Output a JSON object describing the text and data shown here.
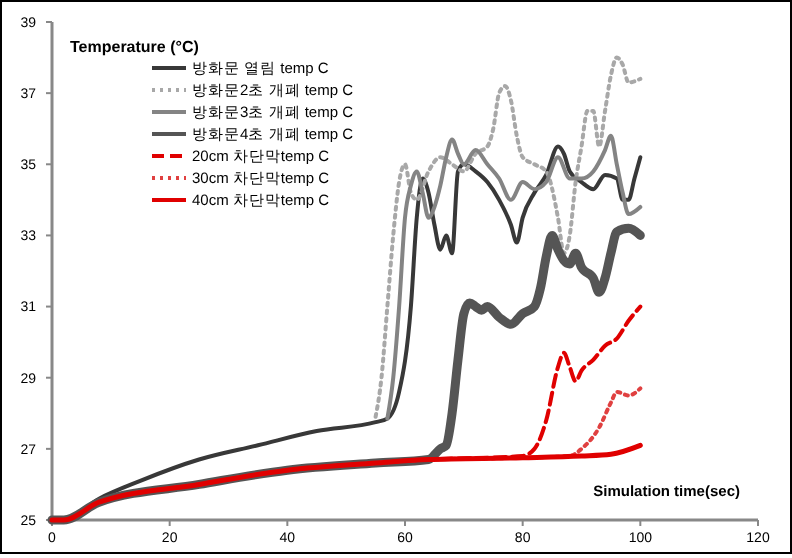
{
  "chart_data": {
    "type": "line",
    "ylabel": "Temperature (°C)",
    "xlabel": "Simulation time(sec)",
    "xlim": [
      0,
      120
    ],
    "xticks": [
      0,
      20,
      40,
      60,
      80,
      100,
      120
    ],
    "ylim": [
      25,
      39
    ],
    "yticks": [
      25,
      27,
      29,
      31,
      33,
      35,
      37,
      39
    ],
    "legend": "top left",
    "grid": false,
    "series": [
      {
        "name": "방화문 열림 temp C",
        "color": "#383838",
        "line_style": "solid",
        "x": [
          0,
          2,
          8,
          15,
          25,
          35,
          45,
          55,
          57,
          59,
          61,
          62,
          63,
          64,
          65,
          66,
          67,
          68,
          69,
          70,
          72,
          74,
          76,
          78,
          79,
          80,
          82,
          84,
          86,
          87,
          88,
          90,
          92,
          94,
          96,
          97,
          98,
          99,
          100
        ],
        "values": [
          25,
          25,
          25.6,
          26.1,
          26.7,
          27.1,
          27.5,
          27.75,
          27.85,
          28.6,
          31,
          33.5,
          34.6,
          34.2,
          33.3,
          32.6,
          33,
          32.5,
          34.8,
          35,
          34.8,
          34.5,
          34,
          33.3,
          32.8,
          33.5,
          34.2,
          34.7,
          35.5,
          35.3,
          34.8,
          34.5,
          34.3,
          34.7,
          34.6,
          34,
          34,
          34.6,
          35.2
        ]
      },
      {
        "name": "방화문2초 개폐 temp C",
        "color": "#a8a8a8",
        "line_style": "dotted",
        "x": [
          55,
          56,
          57,
          58,
          59,
          60,
          61,
          62,
          64,
          66,
          68,
          70,
          72,
          74,
          75,
          76,
          77,
          78,
          79,
          80,
          82,
          84,
          86,
          87,
          88,
          89,
          90,
          91,
          92,
          93,
          94,
          95,
          96,
          97,
          98,
          100
        ],
        "values": [
          27.9,
          29,
          31,
          33,
          34.5,
          35,
          34.2,
          34,
          34.8,
          35.2,
          35,
          34.8,
          35.3,
          35.5,
          36,
          37,
          37.2,
          36.8,
          35.8,
          35.2,
          35,
          34.8,
          33.5,
          32.5,
          33,
          34.5,
          35.5,
          36.5,
          36.5,
          35.5,
          36.5,
          37.5,
          38,
          37.8,
          37.3,
          37.4
        ]
      },
      {
        "name": "방화문3초 개폐 temp C",
        "color": "#848484",
        "line_style": "solid",
        "x": [
          57,
          58,
          59,
          60,
          61,
          62,
          63,
          64,
          65,
          66,
          67,
          68,
          69,
          70,
          72,
          74,
          76,
          78,
          80,
          82,
          84,
          86,
          88,
          90,
          92,
          94,
          95,
          96,
          97,
          98,
          100
        ],
        "values": [
          27.85,
          29,
          31,
          33.5,
          34.4,
          34.8,
          34.2,
          33.5,
          33.8,
          34.4,
          35.2,
          35.7,
          35.3,
          35,
          35.4,
          35,
          34.6,
          34,
          34.5,
          34.3,
          34.5,
          35.2,
          34.6,
          34.6,
          34.8,
          35.4,
          35.8,
          35,
          34.2,
          33.6,
          33.8
        ]
      },
      {
        "name": "방화문4초 개폐 temp C",
        "color": "#555555",
        "line_style": "solid",
        "x": [
          0,
          2,
          8,
          25,
          40,
          55,
          64,
          66,
          67,
          68,
          69,
          70,
          71,
          72,
          73,
          74,
          76,
          78,
          80,
          82,
          83,
          84,
          85,
          86,
          87,
          88,
          89,
          90,
          92,
          93,
          94,
          95,
          96,
          98,
          100
        ],
        "values": [
          25,
          25,
          25.5,
          26,
          26.4,
          26.6,
          26.7,
          27,
          27.1,
          28,
          29.5,
          30.8,
          31.1,
          31,
          30.9,
          31,
          30.7,
          30.5,
          30.8,
          31,
          31.5,
          32.4,
          33,
          32.6,
          32.3,
          32.2,
          32.5,
          32.1,
          31.8,
          31.4,
          31.8,
          32.5,
          33.1,
          33.2,
          33
        ]
      },
      {
        "name": "20cm 차단막temp C",
        "color": "#e00000",
        "line_style": "dashed",
        "x": [
          0,
          2,
          8,
          25,
          40,
          55,
          64,
          80,
          82,
          84,
          86,
          87,
          88,
          89,
          90,
          92,
          94,
          96,
          98,
          100
        ],
        "values": [
          25,
          25,
          25.5,
          26,
          26.4,
          26.6,
          26.7,
          26.8,
          27,
          27.8,
          29.3,
          29.7,
          29.3,
          28.9,
          29.2,
          29.5,
          29.9,
          30.1,
          30.6,
          31
        ]
      },
      {
        "name": "30cm 차단막temp C",
        "color": "#e04040",
        "line_style": "dotted",
        "x": [
          0,
          2,
          8,
          25,
          40,
          55,
          64,
          80,
          88,
          90,
          93,
          95,
          96,
          98,
          100
        ],
        "values": [
          25,
          25,
          25.5,
          26,
          26.4,
          26.6,
          26.7,
          26.75,
          26.8,
          27,
          27.6,
          28.3,
          28.6,
          28.5,
          28.7
        ]
      },
      {
        "name": "40cm 차단막temp C",
        "color": "#e00000",
        "line_style": "solid",
        "x": [
          0,
          2,
          8,
          25,
          40,
          55,
          64,
          80,
          90,
          95,
          100
        ],
        "values": [
          25,
          25,
          25.5,
          26,
          26.4,
          26.6,
          26.7,
          26.75,
          26.8,
          26.85,
          27.1
        ]
      }
    ]
  }
}
